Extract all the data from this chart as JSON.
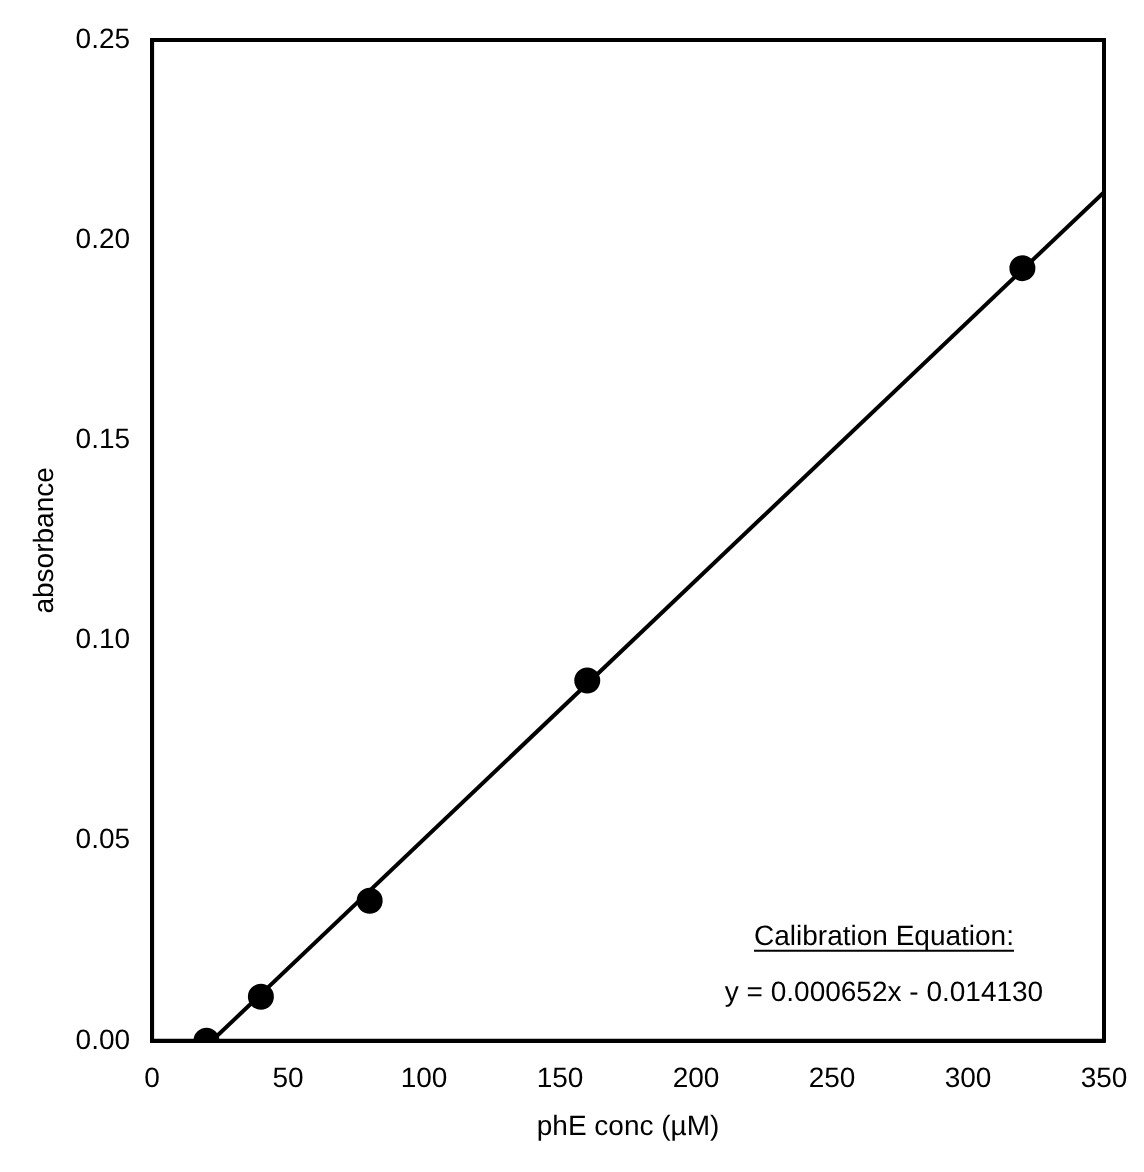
{
  "chart_data": {
    "type": "scatter",
    "xlabel": "phE conc (µM)",
    "ylabel": "absorbance",
    "xlim": [
      0,
      350
    ],
    "xticks": [
      0,
      50,
      100,
      150,
      200,
      250,
      300,
      350
    ],
    "ylim": [
      0,
      0.25
    ],
    "yticks": [
      {
        "value": 0,
        "label": "0.00"
      },
      {
        "value": 0.05,
        "label": "0.05"
      },
      {
        "value": 0.1,
        "label": "0.10"
      },
      {
        "value": 0.15,
        "label": "0.15"
      },
      {
        "value": 0.2,
        "label": "0.20"
      },
      {
        "value": 0.25,
        "label": "0.25"
      }
    ],
    "series": [
      {
        "type": "scatter",
        "color": "#000000",
        "marker": "circle",
        "x": [
          20,
          40,
          80,
          160,
          320
        ],
        "values": [
          0,
          0.011,
          0.035,
          0.09,
          0.193
        ]
      },
      {
        "type": "line",
        "color": "#000000",
        "marker": "none",
        "x": [
          22,
          350
        ],
        "values": [
          0,
          0.212
        ]
      }
    ],
    "line_style": "solid",
    "grid": false,
    "legend": false,
    "annotations": [
      "Calibration Equation:",
      "y = 0.000652x - 0.014130"
    ]
  }
}
